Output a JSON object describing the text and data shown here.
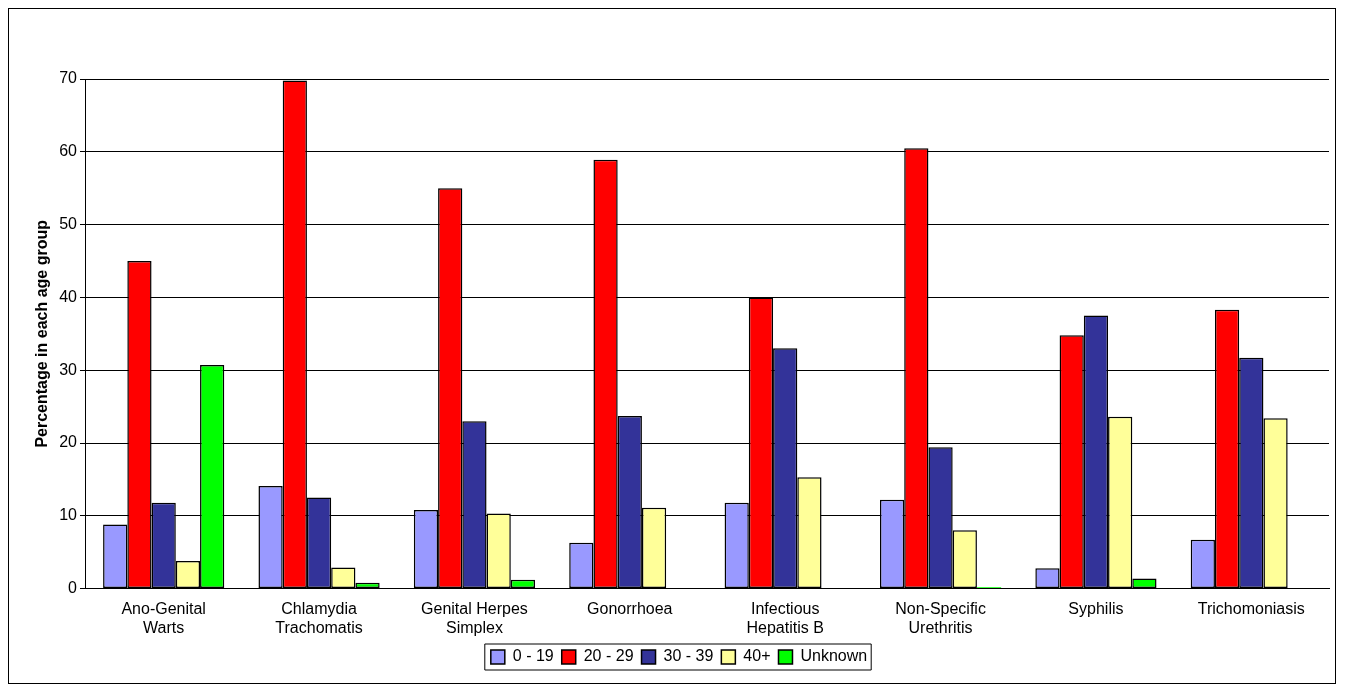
{
  "chart_data": {
    "type": "bar",
    "categories": [
      "Ano-Genital Warts",
      "Chlamydia Trachomatis",
      "Genital Herpes Simplex",
      "Gonorrhoea",
      "Infectious Hepatitis B",
      "Non-Specific Urethritis",
      "Syphilis",
      "Trichomoniasis"
    ],
    "series": [
      {
        "name": "0 - 19",
        "color": "#9999ff",
        "values": [
          8.8,
          14.1,
          10.8,
          6.3,
          11.8,
          12.2,
          2.8,
          6.7
        ]
      },
      {
        "name": "20 - 29",
        "color": "#ff0000",
        "values": [
          45,
          69.8,
          55,
          58.9,
          40,
          60.5,
          34.8,
          38.3
        ]
      },
      {
        "name": "30 - 39",
        "color": "#333399",
        "values": [
          11.8,
          12.5,
          23,
          23.7,
          33,
          19.4,
          37.5,
          31.7
        ]
      },
      {
        "name": "40+",
        "color": "#ffff99",
        "values": [
          3.8,
          2.9,
          10.3,
          11.1,
          15.3,
          8,
          23.6,
          23.4
        ]
      },
      {
        "name": "Unknown",
        "color": "#00ff00",
        "values": [
          30.7,
          0.8,
          1.2,
          null,
          null,
          0.2,
          1.4,
          null
        ]
      }
    ],
    "ylabel": "Percentage in each age group",
    "ylim": [
      0,
      70
    ],
    "yticks": [
      0,
      10,
      20,
      30,
      40,
      50,
      60,
      70
    ],
    "grid": "y",
    "legend": "bottom"
  }
}
